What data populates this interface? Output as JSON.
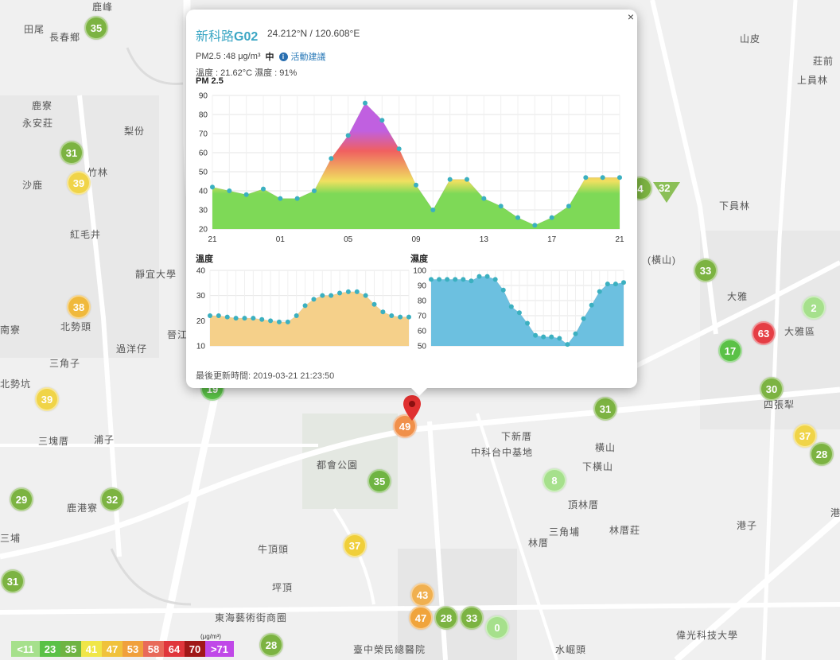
{
  "map": {
    "places": [
      {
        "text": "鹿峰"
      },
      {
        "text": "田尾"
      },
      {
        "text": "長春鄉"
      },
      {
        "text": "鹿寮"
      },
      {
        "text": "永安莊"
      },
      {
        "text": "梨份"
      },
      {
        "text": "竹林"
      },
      {
        "text": "沙鹿"
      },
      {
        "text": "紅毛井"
      },
      {
        "text": "靜宜大學"
      },
      {
        "text": "北勢頭"
      },
      {
        "text": "晉江"
      },
      {
        "text": "過洋仔"
      },
      {
        "text": "三角子"
      },
      {
        "text": "北勢坑"
      },
      {
        "text": "三塊厝"
      },
      {
        "text": "浦子"
      },
      {
        "text": "鹿港寮"
      },
      {
        "text": "都會公園"
      },
      {
        "text": "牛頂頭"
      },
      {
        "text": "坪頂"
      },
      {
        "text": "東海藝術街商圈"
      },
      {
        "text": "下新厝"
      },
      {
        "text": "中科台中基地"
      },
      {
        "text": "橫山"
      },
      {
        "text": "下橫山"
      },
      {
        "text": "頂林厝"
      },
      {
        "text": "三角埔"
      },
      {
        "text": "林厝"
      },
      {
        "text": "林厝莊"
      },
      {
        "text": "港子"
      },
      {
        "text": "大雅"
      },
      {
        "text": "大雅區"
      },
      {
        "text": "四張犁"
      },
      {
        "text": "山皮"
      },
      {
        "text": "莊前"
      },
      {
        "text": "上員林"
      },
      {
        "text": "下員林"
      },
      {
        "text": "港"
      },
      {
        "text": "水崛頭"
      },
      {
        "text": "臺中榮民總醫院"
      },
      {
        "text": "偉光科技大學"
      },
      {
        "text": "(橫山)"
      },
      {
        "text": "南寮"
      },
      {
        "text": "三埔"
      }
    ],
    "markers": [
      {
        "value": "35",
        "color": "#7cb342"
      },
      {
        "value": "31",
        "color": "#7cb342"
      },
      {
        "value": "39",
        "color": "#f0d448"
      },
      {
        "value": "38",
        "color": "#f0b93c"
      },
      {
        "value": "39",
        "color": "#f0d448"
      },
      {
        "value": "29",
        "color": "#7cb342"
      },
      {
        "value": "32",
        "color": "#7cb342"
      },
      {
        "value": "31",
        "color": "#7cb342"
      },
      {
        "value": "19",
        "color": "#5ac147"
      },
      {
        "value": "35",
        "color": "#6fb443"
      },
      {
        "value": "37",
        "color": "#f0cf3a"
      },
      {
        "value": "43",
        "color": "#f0b050"
      },
      {
        "value": "47",
        "color": "#f0a43c"
      },
      {
        "value": "28",
        "color": "#7cb342"
      },
      {
        "value": "33",
        "color": "#7cb342"
      },
      {
        "value": "0",
        "color": "#a6e08c"
      },
      {
        "value": "28",
        "color": "#7cb342"
      },
      {
        "value": "8",
        "color": "#a6e08c"
      },
      {
        "value": "31",
        "color": "#7cb342"
      },
      {
        "value": "33",
        "color": "#7cb342"
      },
      {
        "value": "17",
        "color": "#5ac147"
      },
      {
        "value": "2",
        "color": "#a6e08c"
      },
      {
        "value": "63",
        "color": "#e53e45"
      },
      {
        "value": "30",
        "color": "#7cb342"
      },
      {
        "value": "37",
        "color": "#f0d448"
      },
      {
        "value": "28",
        "color": "#7cb342"
      },
      {
        "value": "49",
        "color": "#f0904a"
      }
    ],
    "triangle_marker": {
      "value": "32",
      "color": "#8bbf57"
    },
    "partial_marker": {
      "value": "4"
    }
  },
  "legend": {
    "items": [
      {
        "label": "<11",
        "color": "#a6e08c"
      },
      {
        "label": "23",
        "color": "#5ac147"
      },
      {
        "label": "35",
        "color": "#6fb443"
      },
      {
        "label": "41",
        "color": "#f0e648"
      },
      {
        "label": "47",
        "color": "#f0c23c"
      },
      {
        "label": "53",
        "color": "#f0a03c"
      },
      {
        "label": "58",
        "color": "#e86a5a"
      },
      {
        "label": "64",
        "color": "#e0363c"
      },
      {
        "label": "70",
        "color": "#a01818"
      },
      {
        "label": ">71",
        "color": "#c048e8"
      }
    ],
    "unit": "(μg/m³)"
  },
  "popup": {
    "close": "×",
    "name_prefix": "新科路",
    "name_code": "G02",
    "coord": "24.212°N / 120.608°E",
    "pm_text": "PM2.5 :48 μg/m³",
    "pm_level": "中",
    "advice_link": "活動建議",
    "info_icon": "i",
    "temp_humidity": "溫度 : 21.62°C 濕度 : 91%",
    "updated": "最後更新時間: 2019-03-21 21:23:50"
  },
  "chart_data": [
    {
      "type": "area",
      "title": "PM 2.5",
      "xlabel": "",
      "ylabel": "",
      "ylim": [
        20,
        90
      ],
      "yticks": [
        20,
        30,
        40,
        50,
        60,
        70,
        80,
        90
      ],
      "xtick_labels": [
        "21",
        "01",
        "05",
        "09",
        "13",
        "17",
        "21"
      ],
      "x": [
        0,
        1,
        2,
        3,
        4,
        5,
        6,
        7,
        8,
        9,
        10,
        11,
        12,
        13,
        14,
        15,
        16,
        17,
        18,
        19,
        20,
        21,
        22,
        23,
        24
      ],
      "values": [
        42,
        40,
        38,
        41,
        36,
        36,
        40,
        57,
        69,
        86,
        77,
        62,
        43,
        30,
        46,
        46,
        36,
        32,
        26,
        22,
        26,
        32,
        47,
        47,
        47
      ],
      "grid": true,
      "colors": [
        "#7ed957",
        "#f0e060",
        "#f06060",
        "#c060e0"
      ]
    },
    {
      "type": "area",
      "title": "溫度",
      "ylim": [
        10,
        40
      ],
      "yticks": [
        10,
        20,
        30,
        40
      ],
      "values": [
        22,
        22,
        21.5,
        21,
        21,
        21,
        20.5,
        20,
        19.5,
        19.5,
        22,
        26,
        28.5,
        30,
        30,
        31,
        31.5,
        31.5,
        30,
        26.5,
        23.5,
        22,
        21.5,
        21.5
      ],
      "grid": true,
      "color": "#f5d08a"
    },
    {
      "type": "area",
      "title": "濕度",
      "ylim": [
        50,
        100
      ],
      "yticks": [
        50,
        60,
        70,
        80,
        90,
        100
      ],
      "values": [
        94,
        94,
        94,
        94,
        94,
        93,
        96,
        96,
        94,
        87,
        76,
        72,
        65,
        57,
        56,
        56,
        55,
        51,
        58,
        68,
        77,
        86,
        91,
        91,
        92
      ],
      "grid": true,
      "color": "#6cc0e0"
    }
  ]
}
